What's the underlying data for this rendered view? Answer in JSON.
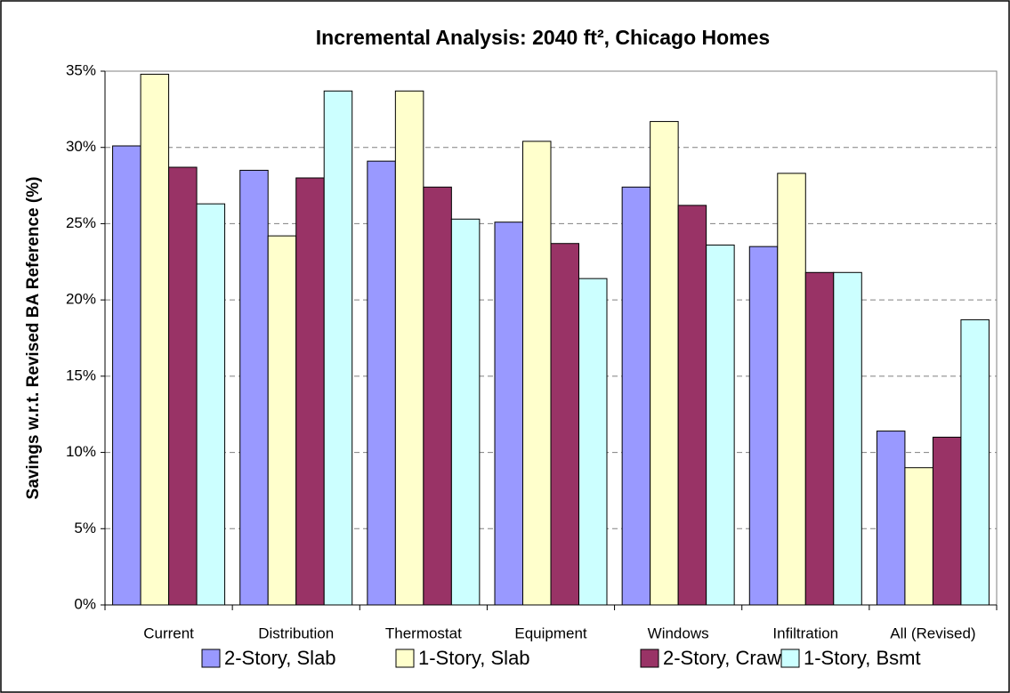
{
  "chart_data": {
    "type": "bar",
    "title": "Incremental Analysis: 2040 ft², Chicago Homes",
    "y_label": "Savings w.r.t. Revised  BA Reference (%)",
    "categories": [
      "Current",
      "Distribution",
      "Thermostat",
      "Equipment",
      "Windows",
      "Infiltration",
      "All (Revised)"
    ],
    "series": [
      {
        "name": "2-Story, Slab",
        "color": "#9999ff",
        "values": [
          30.1,
          28.5,
          29.1,
          25.1,
          27.4,
          23.5,
          11.4
        ]
      },
      {
        "name": "1-Story, Slab",
        "color": "#ffffcc",
        "values": [
          34.8,
          24.2,
          33.7,
          30.4,
          31.7,
          28.3,
          9.0
        ]
      },
      {
        "name": "2-Story, Crawl",
        "color": "#993366",
        "values": [
          28.7,
          28.0,
          27.4,
          23.7,
          26.2,
          21.8,
          11.0
        ]
      },
      {
        "name": "1-Story, Bsmt",
        "color": "#ccffff",
        "values": [
          26.3,
          33.7,
          25.3,
          21.4,
          23.6,
          21.8,
          18.7
        ]
      }
    ],
    "ylim": [
      0,
      35
    ],
    "yticks": [
      {
        "value": 0,
        "label": "0%"
      },
      {
        "value": 5,
        "label": "5%"
      },
      {
        "value": 10,
        "label": "10%"
      },
      {
        "value": 15,
        "label": "15%"
      },
      {
        "value": 20,
        "label": "20%"
      },
      {
        "value": 25,
        "label": "25%"
      },
      {
        "value": 30,
        "label": "30%"
      },
      {
        "value": 35,
        "label": "35%"
      }
    ],
    "grid": true,
    "legend": "bottom"
  }
}
